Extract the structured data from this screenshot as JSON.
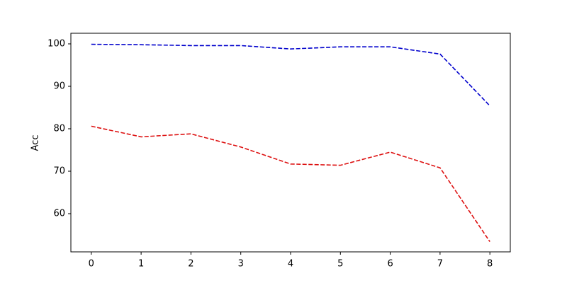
{
  "chart_data": {
    "type": "line",
    "ylabel": "Acc",
    "x": [
      0,
      1,
      2,
      3,
      4,
      5,
      6,
      7,
      8
    ],
    "series": [
      {
        "color": "#0000cc",
        "values": [
          99.9,
          99.8,
          99.6,
          99.6,
          98.8,
          99.3,
          99.3,
          97.6,
          85.4
        ]
      },
      {
        "color": "#dd1111",
        "values": [
          80.6,
          78.1,
          78.8,
          75.7,
          71.7,
          71.4,
          74.5,
          70.8,
          53.4
        ]
      }
    ],
    "xlim": [
      -0.41,
      8.41
    ],
    "xticks": [
      0,
      1,
      2,
      3,
      4,
      5,
      6,
      7,
      8
    ],
    "ylim": [
      51,
      102.5
    ],
    "yticks": [
      60,
      70,
      80,
      90,
      100
    ],
    "dashed": true
  }
}
